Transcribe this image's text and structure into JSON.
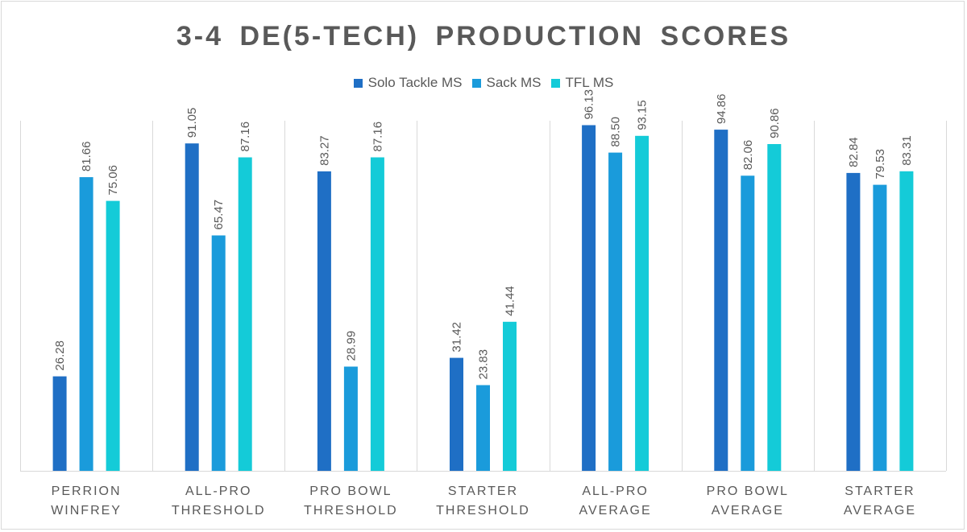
{
  "chart_data": {
    "type": "bar",
    "title": "3-4 DE(5-TECH) PRODUCTION SCORES",
    "xlabel": "",
    "ylabel": "",
    "ylim": [
      0,
      100
    ],
    "categories": [
      [
        "PERRION",
        "WINFREY"
      ],
      [
        "ALL-PRO",
        "THRESHOLD"
      ],
      [
        "PRO BOWL",
        "THRESHOLD"
      ],
      [
        "STARTER",
        "THRESHOLD"
      ],
      [
        "ALL-PRO",
        "AVERAGE"
      ],
      [
        "PRO BOWL",
        "AVERAGE"
      ],
      [
        "STARTER",
        "AVERAGE"
      ]
    ],
    "series": [
      {
        "name": "Solo Tackle MS",
        "color": "#1f6fc5",
        "values": [
          26.28,
          91.05,
          83.27,
          31.42,
          96.13,
          94.86,
          82.84
        ]
      },
      {
        "name": "Sack MS",
        "color": "#1a9bdb",
        "values": [
          81.66,
          65.47,
          28.99,
          23.83,
          88.5,
          82.06,
          79.53
        ]
      },
      {
        "name": "TFL MS",
        "color": "#14cbd8",
        "values": [
          75.06,
          87.16,
          87.16,
          41.44,
          93.15,
          90.86,
          83.31
        ]
      }
    ],
    "grid": true,
    "grid_style": "vertical-category-dividers",
    "legend_position": "top-center",
    "data_labels": "rotated-vertical"
  }
}
